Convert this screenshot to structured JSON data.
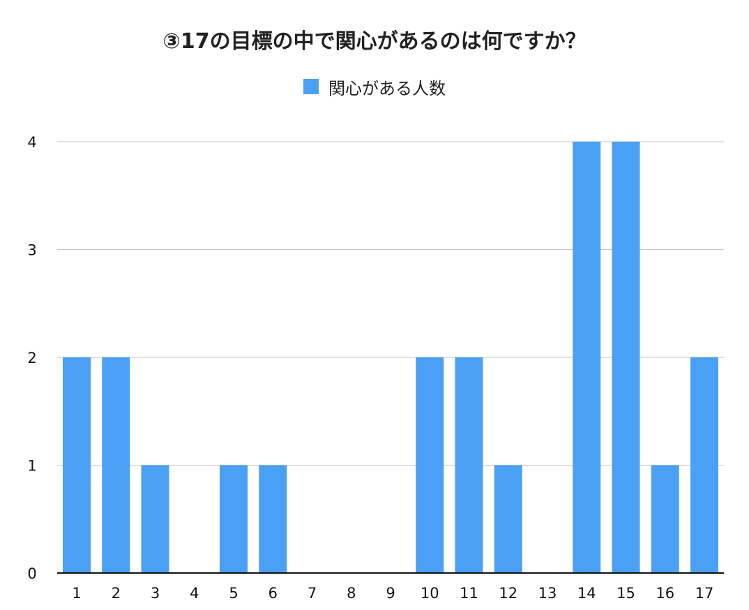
{
  "chart_data": {
    "type": "bar",
    "title": "③17の目標の中で関心があるのは何ですか？",
    "categories": [
      "1",
      "2",
      "3",
      "4",
      "5",
      "6",
      "7",
      "8",
      "9",
      "10",
      "11",
      "12",
      "13",
      "14",
      "15",
      "16",
      "17"
    ],
    "series": [
      {
        "name": "関心がある人数",
        "values": [
          2,
          2,
          1,
          0,
          1,
          1,
          0,
          0,
          0,
          2,
          2,
          1,
          0,
          4,
          4,
          1,
          2
        ],
        "color": "#4aa0f5"
      }
    ],
    "yticks": [
      0,
      1,
      2,
      3,
      4
    ],
    "ylim": [
      0,
      4
    ],
    "xlabel": "",
    "ylabel": "",
    "grid": true,
    "legend_position": "top"
  }
}
